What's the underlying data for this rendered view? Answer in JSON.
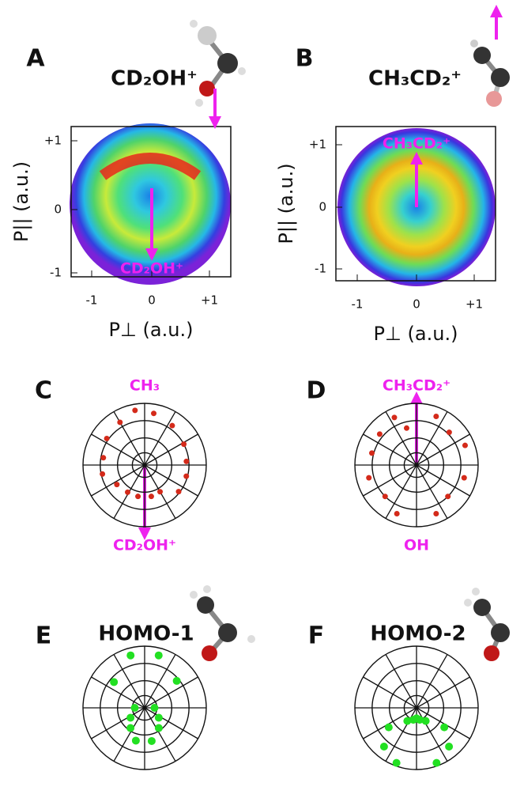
{
  "panels": [
    {
      "label": "A",
      "title": "CD₂OH⁺",
      "y_label": "P|| (a.u.)",
      "x_label": "P⊥ (a.u.)",
      "yticks": [
        "+1",
        "0",
        "-1"
      ],
      "xticks": [
        "-1",
        "0",
        "+1"
      ],
      "annotation": "CD₂OH⁺"
    },
    {
      "label": "B",
      "title": "CH₃CD₂⁺",
      "y_label": "P|| (a.u.)",
      "x_label": "P⊥ (a.u.)",
      "yticks": [
        "+1",
        "0",
        "-1"
      ],
      "xticks": [
        "-1",
        "0",
        "+1"
      ],
      "annotation": "CH₃CD₂⁺"
    },
    {
      "label": "C",
      "top_label": "CH₃",
      "bottom_label": "CD₂OH⁺",
      "color": "#d42a1a",
      "points": [
        {
          "angle": 10,
          "r": 0.85
        },
        {
          "angle": 35,
          "r": 0.78
        },
        {
          "angle": 62,
          "r": 0.72
        },
        {
          "angle": 85,
          "r": 0.68
        },
        {
          "angle": 105,
          "r": 0.7
        },
        {
          "angle": 128,
          "r": 0.7
        },
        {
          "angle": 150,
          "r": 0.5
        },
        {
          "angle": 168,
          "r": 0.52
        },
        {
          "angle": 192,
          "r": 0.52
        },
        {
          "angle": 212,
          "r": 0.52
        },
        {
          "angle": 235,
          "r": 0.55
        },
        {
          "angle": 258,
          "r": 0.7
        },
        {
          "angle": 280,
          "r": 0.68
        },
        {
          "angle": 305,
          "r": 0.75
        },
        {
          "angle": 330,
          "r": 0.8
        },
        {
          "angle": 350,
          "r": 0.9
        }
      ]
    },
    {
      "label": "D",
      "top_label": "CH₃CD₂⁺",
      "bottom_label": "OH",
      "color": "#d42a1a",
      "points": [
        {
          "angle": 22,
          "r": 0.85
        },
        {
          "angle": 45,
          "r": 0.75
        },
        {
          "angle": 68,
          "r": 0.85
        },
        {
          "angle": 105,
          "r": 0.8
        },
        {
          "angle": 135,
          "r": 0.72
        },
        {
          "angle": 158,
          "r": 0.85
        },
        {
          "angle": 202,
          "r": 0.85
        },
        {
          "angle": 225,
          "r": 0.72
        },
        {
          "angle": 255,
          "r": 0.8
        },
        {
          "angle": 285,
          "r": 0.75
        },
        {
          "angle": 310,
          "r": 0.78
        },
        {
          "angle": 335,
          "r": 0.85
        },
        {
          "angle": 345,
          "r": 0.62
        }
      ]
    },
    {
      "label": "E",
      "title": "HOMO-1",
      "color": "#22e022",
      "points": [
        {
          "angle": 345,
          "r": 0.88
        },
        {
          "angle": 15,
          "r": 0.88
        },
        {
          "angle": 310,
          "r": 0.65
        },
        {
          "angle": 50,
          "r": 0.68
        },
        {
          "angle": 235,
          "r": 0.28
        },
        {
          "angle": 125,
          "r": 0.28
        },
        {
          "angle": 215,
          "r": 0.4
        },
        {
          "angle": 145,
          "r": 0.4
        },
        {
          "angle": 195,
          "r": 0.55
        },
        {
          "angle": 168,
          "r": 0.55
        },
        {
          "angle": 270,
          "r": 0.16
        },
        {
          "angle": 90,
          "r": 0.16
        }
      ]
    },
    {
      "label": "F",
      "title": "HOMO-2",
      "color": "#22e022",
      "points": [
        {
          "angle": 165,
          "r": 0.2
        },
        {
          "angle": 180,
          "r": 0.17
        },
        {
          "angle": 195,
          "r": 0.2
        },
        {
          "angle": 215,
          "r": 0.26
        },
        {
          "angle": 145,
          "r": 0.26
        },
        {
          "angle": 235,
          "r": 0.55
        },
        {
          "angle": 125,
          "r": 0.55
        },
        {
          "angle": 220,
          "r": 0.82
        },
        {
          "angle": 140,
          "r": 0.82
        },
        {
          "angle": 200,
          "r": 0.95
        },
        {
          "angle": 160,
          "r": 0.95
        }
      ]
    }
  ]
}
